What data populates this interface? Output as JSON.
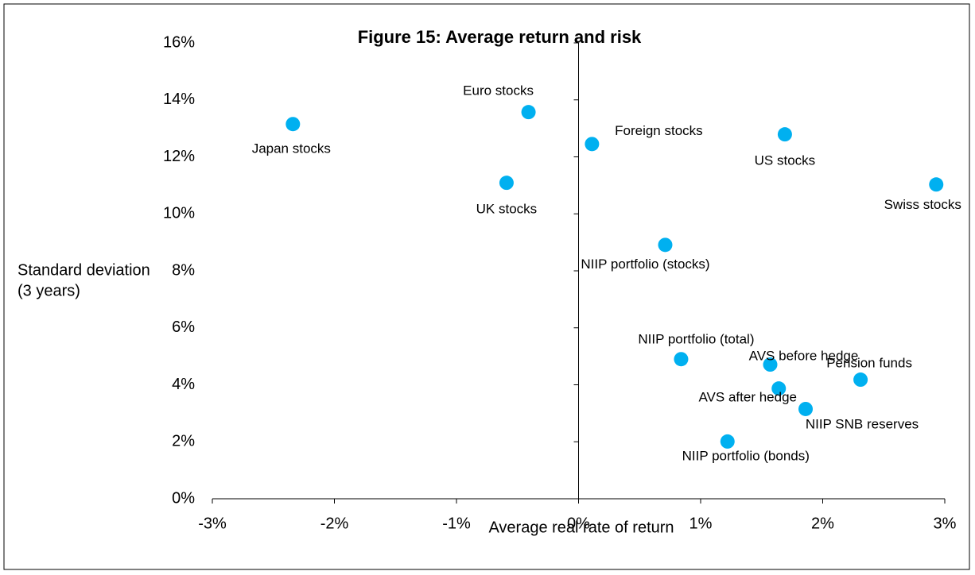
{
  "chart_data": {
    "type": "scatter",
    "title": "Figure 15: Average return and risk",
    "xlabel": "Average real rate of return",
    "ylabel": [
      "Standard deviation",
      "(3 years)"
    ],
    "color": "#00b0f0",
    "xlim": [
      -3,
      3
    ],
    "ylim": [
      0,
      16
    ],
    "xticks": [
      {
        "value": -3,
        "label": "-3%"
      },
      {
        "value": -2,
        "label": "-2%"
      },
      {
        "value": -1,
        "label": "-1%"
      },
      {
        "value": 0,
        "label": "0%"
      },
      {
        "value": 1,
        "label": "1%"
      },
      {
        "value": 2,
        "label": "2%"
      },
      {
        "value": 3,
        "label": "3%"
      }
    ],
    "yticks": [
      {
        "value": 0,
        "label": "0%"
      },
      {
        "value": 2,
        "label": "2%"
      },
      {
        "value": 4,
        "label": "4%"
      },
      {
        "value": 6,
        "label": "6%"
      },
      {
        "value": 8,
        "label": "8%"
      },
      {
        "value": 10,
        "label": "10%"
      },
      {
        "value": 12,
        "label": "12%"
      },
      {
        "value": 14,
        "label": "14%"
      },
      {
        "value": 16,
        "label": "16%"
      }
    ],
    "labels": [
      "Japan stocks",
      "Euro stocks",
      "Foreign stocks",
      "UK stocks",
      "US stocks",
      "Swiss stocks",
      "NIIP portfolio (stocks)",
      "NIIP portfolio (total)",
      "AVS before hedge",
      "AVS after hedge",
      "Pension funds",
      "NIIP SNB reserves",
      "NIIP portfolio (bonds)"
    ],
    "x": [
      -2.34,
      -0.41,
      0.11,
      -0.59,
      1.69,
      2.93,
      0.71,
      0.84,
      1.57,
      1.64,
      2.31,
      1.86,
      1.22
    ],
    "values": [
      13.15,
      13.57,
      12.45,
      11.09,
      12.79,
      11.03,
      8.91,
      4.9,
      4.71,
      3.87,
      4.18,
      3.15,
      2.01
    ]
  }
}
